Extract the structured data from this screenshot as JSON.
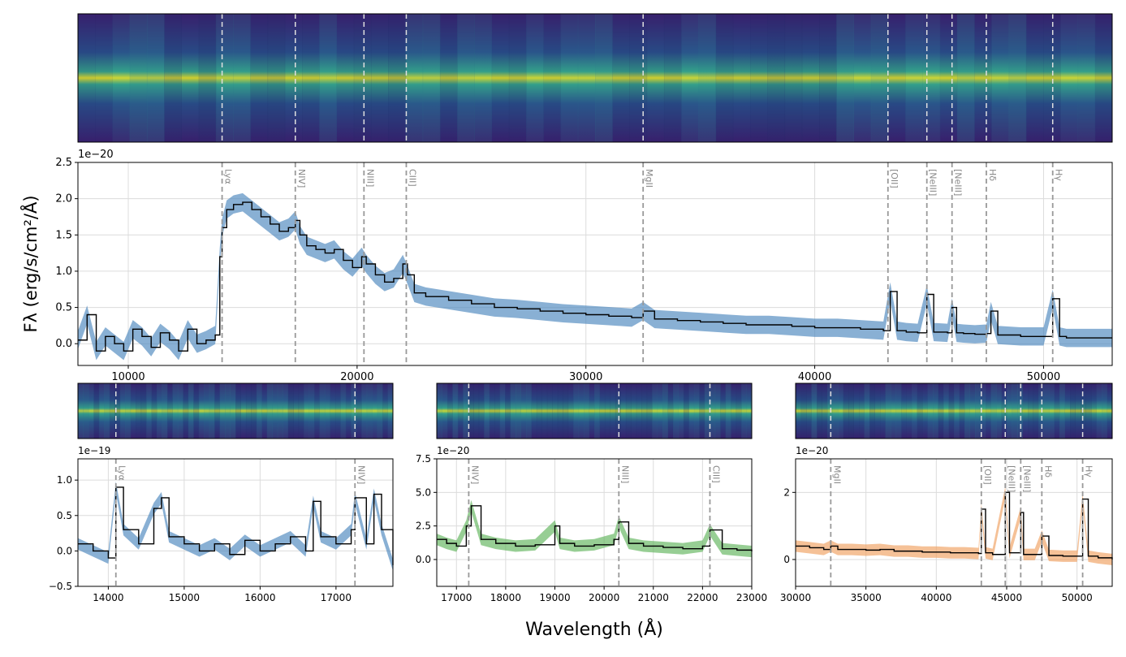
{
  "figure": {
    "xlabel": "Wavelength (Å)",
    "ylabel_main": "Fλ (erg/s/cm²/Å)"
  },
  "chart_data": [
    {
      "id": "main",
      "type": "line",
      "xlim": [
        7800,
        53000
      ],
      "ylim": [
        -0.3,
        2.5
      ],
      "offset_text": "1e−20",
      "ylabel": "Fλ (erg/s/cm²/Å)",
      "xticks": [
        10000,
        20000,
        30000,
        40000,
        50000
      ],
      "xtick_labels": [
        "10000",
        "20000",
        "30000",
        "40000",
        "50000"
      ],
      "yticks": [
        0.0,
        0.5,
        1.0,
        1.5,
        2.0,
        2.5
      ],
      "ytick_labels": [
        "0.0",
        "0.5",
        "1.0",
        "1.5",
        "2.0",
        "2.5"
      ],
      "grid": true,
      "band_color": "#4a86bd",
      "x": [
        7800,
        8200,
        8600,
        9000,
        9400,
        9800,
        10200,
        10600,
        11000,
        11400,
        11800,
        12200,
        12600,
        13000,
        13400,
        13800,
        14000,
        14100,
        14300,
        14600,
        15000,
        15400,
        15800,
        16200,
        16600,
        17000,
        17300,
        17500,
        17800,
        18200,
        18600,
        19000,
        19400,
        19800,
        20200,
        20400,
        20800,
        21200,
        21600,
        22000,
        22200,
        22500,
        23000,
        24000,
        25000,
        26000,
        27000,
        28000,
        29000,
        30000,
        31000,
        32000,
        32500,
        33000,
        34000,
        35000,
        36000,
        37000,
        38000,
        39000,
        40000,
        41000,
        42000,
        43000,
        43300,
        43600,
        44000,
        44500,
        44900,
        45200,
        45800,
        46000,
        46200,
        46500,
        47000,
        47500,
        47700,
        48000,
        49000,
        50000,
        50400,
        50700,
        51000,
        52000,
        53000
      ],
      "y": [
        0.05,
        0.4,
        -0.1,
        0.1,
        0.0,
        -0.1,
        0.2,
        0.1,
        -0.05,
        0.15,
        0.05,
        -0.1,
        0.2,
        0.0,
        0.05,
        0.12,
        1.2,
        1.6,
        1.85,
        1.92,
        1.95,
        1.85,
        1.75,
        1.65,
        1.55,
        1.6,
        1.7,
        1.5,
        1.35,
        1.3,
        1.25,
        1.3,
        1.15,
        1.05,
        1.2,
        1.1,
        0.95,
        0.85,
        0.9,
        1.1,
        0.95,
        0.7,
        0.65,
        0.6,
        0.55,
        0.5,
        0.48,
        0.45,
        0.42,
        0.4,
        0.38,
        0.36,
        0.45,
        0.34,
        0.32,
        0.3,
        0.28,
        0.26,
        0.26,
        0.24,
        0.22,
        0.22,
        0.2,
        0.18,
        0.72,
        0.18,
        0.16,
        0.15,
        0.68,
        0.16,
        0.15,
        0.5,
        0.15,
        0.14,
        0.13,
        0.14,
        0.45,
        0.12,
        0.1,
        0.1,
        0.62,
        0.1,
        0.08,
        0.08,
        0.08
      ],
      "lines": [
        {
          "label": "Lyα",
          "x": 14100
        },
        {
          "label": "NIV]",
          "x": 17300
        },
        {
          "label": "NIII]",
          "x": 20300
        },
        {
          "label": "CIII]",
          "x": 22150
        },
        {
          "label": "MgII",
          "x": 32500
        },
        {
          "label": "[OII]",
          "x": 43200
        },
        {
          "label": "[NeIII]",
          "x": 44900
        },
        {
          "label": "[NeIII]",
          "x": 46000
        },
        {
          "label": "Hδ",
          "x": 47500
        },
        {
          "label": "Hγ",
          "x": 50400
        }
      ]
    },
    {
      "id": "sub1",
      "type": "line",
      "xlim": [
        13600,
        17750
      ],
      "ylim": [
        -0.5,
        1.3
      ],
      "offset_text": "1e−19",
      "xticks": [
        14000,
        15000,
        16000,
        17000
      ],
      "xtick_labels": [
        "14000",
        "15000",
        "16000",
        "17000"
      ],
      "yticks": [
        -0.5,
        0.0,
        0.5,
        1.0
      ],
      "ytick_labels": [
        "−0.5",
        "0.0",
        "0.5",
        "1.0"
      ],
      "grid": true,
      "band_color": "#4a86bd",
      "x": [
        13600,
        13800,
        14000,
        14100,
        14200,
        14400,
        14600,
        14700,
        14800,
        15000,
        15200,
        15400,
        15600,
        15800,
        16000,
        16200,
        16400,
        16600,
        16700,
        16800,
        17000,
        17200,
        17250,
        17400,
        17500,
        17600,
        17750
      ],
      "y": [
        0.1,
        0.0,
        -0.1,
        0.9,
        0.3,
        0.1,
        0.6,
        0.75,
        0.2,
        0.1,
        0.0,
        0.1,
        -0.05,
        0.15,
        0.0,
        0.1,
        0.2,
        0.0,
        0.7,
        0.2,
        0.1,
        0.3,
        0.75,
        0.1,
        0.8,
        0.3,
        -0.2
      ],
      "lines": [
        {
          "label": "Lyα",
          "x": 14100
        },
        {
          "label": "NIV]",
          "x": 17250
        }
      ]
    },
    {
      "id": "sub2",
      "type": "line",
      "xlim": [
        16600,
        23000
      ],
      "ylim": [
        -2.0,
        7.5
      ],
      "offset_text": "1e−20",
      "xticks": [
        17000,
        18000,
        19000,
        20000,
        21000,
        22000,
        23000
      ],
      "xtick_labels": [
        "17000",
        "18000",
        "19000",
        "20000",
        "21000",
        "22000",
        "23000"
      ],
      "yticks": [
        0.0,
        2.5,
        5.0,
        7.5
      ],
      "ytick_labels": [
        "0.0",
        "2.5",
        "5.0",
        "7.5"
      ],
      "grid": true,
      "band_color": "#5fb35a",
      "x": [
        16600,
        16800,
        17000,
        17200,
        17300,
        17500,
        17800,
        18200,
        18600,
        19000,
        19100,
        19400,
        19800,
        20200,
        20300,
        20500,
        20800,
        21200,
        21600,
        22000,
        22150,
        22400,
        22700,
        23000
      ],
      "y": [
        1.5,
        1.2,
        1.0,
        2.5,
        4.0,
        1.5,
        1.2,
        1.0,
        1.1,
        2.5,
        1.2,
        1.0,
        1.1,
        1.5,
        2.8,
        1.2,
        1.0,
        0.9,
        0.8,
        1.0,
        2.2,
        0.8,
        0.7,
        0.6
      ],
      "lines": [
        {
          "label": "NIV]",
          "x": 17250
        },
        {
          "label": "NIII]",
          "x": 20300
        },
        {
          "label": "CIII]",
          "x": 22150
        }
      ]
    },
    {
      "id": "sub3",
      "type": "line",
      "xlim": [
        30000,
        52500
      ],
      "ylim": [
        -0.8,
        3.0
      ],
      "offset_text": "1e−20",
      "xticks": [
        30000,
        35000,
        40000,
        45000,
        50000
      ],
      "xtick_labels": [
        "30000",
        "35000",
        "40000",
        "45000",
        "50000"
      ],
      "yticks": [
        0,
        2
      ],
      "ytick_labels": [
        "0",
        "2"
      ],
      "grid": true,
      "band_color": "#f0a060",
      "x": [
        30000,
        31000,
        32000,
        32500,
        33000,
        34000,
        35000,
        36000,
        37000,
        38000,
        39000,
        40000,
        41000,
        42000,
        43000,
        43200,
        43500,
        44000,
        44900,
        45200,
        46000,
        46200,
        47000,
        47500,
        48000,
        49000,
        50000,
        50400,
        50800,
        51500,
        52500
      ],
      "y": [
        0.4,
        0.35,
        0.3,
        0.4,
        0.3,
        0.3,
        0.28,
        0.3,
        0.25,
        0.25,
        0.22,
        0.22,
        0.2,
        0.2,
        0.18,
        1.5,
        0.2,
        0.15,
        2.0,
        0.2,
        1.4,
        0.15,
        0.15,
        0.7,
        0.12,
        0.1,
        0.1,
        1.8,
        0.1,
        0.05,
        0.0
      ],
      "lines": [
        {
          "label": "MgII",
          "x": 32500
        },
        {
          "label": "[OII]",
          "x": 43200
        },
        {
          "label": "[NeIII]",
          "x": 44900
        },
        {
          "label": "[NeIII]",
          "x": 46000
        },
        {
          "label": "Hδ",
          "x": 47500
        },
        {
          "label": "Hγ",
          "x": 50400
        }
      ]
    }
  ]
}
